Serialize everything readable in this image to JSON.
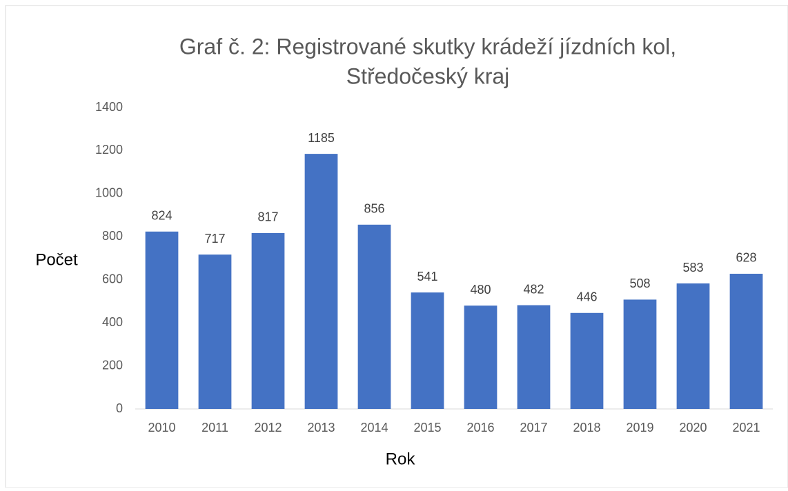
{
  "chart_data": {
    "type": "bar",
    "title": "Graf č. 2: Registrované skutky krádeží jízdních kol,",
    "subtitle": "Středočeský kraj",
    "x_label": "Rok",
    "y_label": "Počet",
    "categories": [
      "2010",
      "2011",
      "2012",
      "2013",
      "2014",
      "2015",
      "2016",
      "2017",
      "2018",
      "2019",
      "2020",
      "2021"
    ],
    "values": [
      824,
      717,
      817,
      1185,
      856,
      541,
      480,
      482,
      446,
      508,
      583,
      628
    ],
    "color": "#4472c4",
    "ylim": [
      0,
      1400
    ],
    "yticks": [
      0,
      200,
      400,
      600,
      800,
      1000,
      1200,
      1400
    ],
    "grid": false
  }
}
